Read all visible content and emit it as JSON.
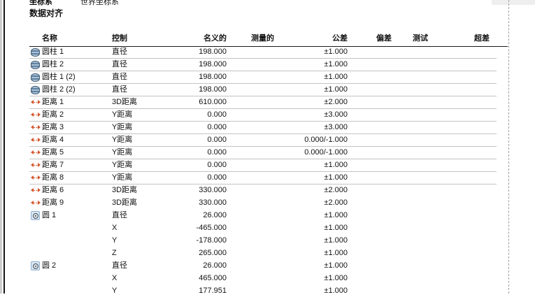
{
  "header": {
    "coord_label": "坐标系",
    "coord_value": "世界坐标系",
    "title": "数据对齐"
  },
  "table": {
    "columns": [
      "名称",
      "控制",
      "名义的",
      "测量的",
      "公差",
      "偏差",
      "测试",
      "超差"
    ],
    "rows": [
      {
        "icon": "cylinder",
        "name": "圆柱 1",
        "control": "直径",
        "nominal": "198.000",
        "measured": "",
        "tolerance": "±1.000",
        "deviation": "",
        "test": "",
        "out_tol": "",
        "separator": true
      },
      {
        "icon": "cylinder",
        "name": "圆柱 2",
        "control": "直径",
        "nominal": "198.000",
        "measured": "",
        "tolerance": "±1.000",
        "deviation": "",
        "test": "",
        "out_tol": "",
        "separator": true
      },
      {
        "icon": "cylinder",
        "name": "圆柱 1 (2)",
        "control": "直径",
        "nominal": "198.000",
        "measured": "",
        "tolerance": "±1.000",
        "deviation": "",
        "test": "",
        "out_tol": "",
        "separator": true
      },
      {
        "icon": "cylinder",
        "name": "圆柱 2 (2)",
        "control": "直径",
        "nominal": "198.000",
        "measured": "",
        "tolerance": "±1.000",
        "deviation": "",
        "test": "",
        "out_tol": "",
        "separator": true
      },
      {
        "icon": "distance",
        "name": "距离 1",
        "control": "3D距离",
        "nominal": "610.000",
        "measured": "",
        "tolerance": "±2.000",
        "deviation": "",
        "test": "",
        "out_tol": "",
        "separator": true
      },
      {
        "icon": "distance",
        "name": "距离 2",
        "control": "Y距离",
        "nominal": "0.000",
        "measured": "",
        "tolerance": "±3.000",
        "deviation": "",
        "test": "",
        "out_tol": "",
        "separator": true
      },
      {
        "icon": "distance",
        "name": "距离 3",
        "control": "Y距离",
        "nominal": "0.000",
        "measured": "",
        "tolerance": "±3.000",
        "deviation": "",
        "test": "",
        "out_tol": "",
        "separator": true
      },
      {
        "icon": "distance",
        "name": "距离 4",
        "control": "Y距离",
        "nominal": "0.000",
        "measured": "",
        "tolerance": "0.000/-1.000",
        "deviation": "",
        "test": "",
        "out_tol": "",
        "separator": true
      },
      {
        "icon": "distance",
        "name": "距离 5",
        "control": "Y距离",
        "nominal": "0.000",
        "measured": "",
        "tolerance": "0.000/-1.000",
        "deviation": "",
        "test": "",
        "out_tol": "",
        "separator": true
      },
      {
        "icon": "distance",
        "name": "距离 7",
        "control": "Y距离",
        "nominal": "0.000",
        "measured": "",
        "tolerance": "±1.000",
        "deviation": "",
        "test": "",
        "out_tol": "",
        "separator": true
      },
      {
        "icon": "distance",
        "name": "距离 8",
        "control": "Y距离",
        "nominal": "0.000",
        "measured": "",
        "tolerance": "±1.000",
        "deviation": "",
        "test": "",
        "out_tol": "",
        "separator": true
      },
      {
        "icon": "distance",
        "name": "距离 6",
        "control": "3D距离",
        "nominal": "330.000",
        "measured": "",
        "tolerance": "±2.000",
        "deviation": "",
        "test": "",
        "out_tol": "",
        "separator": false
      },
      {
        "icon": "distance",
        "name": "距离 9",
        "control": "3D距离",
        "nominal": "330.000",
        "measured": "",
        "tolerance": "±2.000",
        "deviation": "",
        "test": "",
        "out_tol": "",
        "separator": false
      },
      {
        "icon": "circle",
        "name": "圆 1",
        "control": "直径",
        "nominal": "26.000",
        "measured": "",
        "tolerance": "±1.000",
        "deviation": "",
        "test": "",
        "out_tol": "",
        "separator": false
      },
      {
        "icon": "",
        "name": "",
        "control": "X",
        "nominal": "-465.000",
        "measured": "",
        "tolerance": "±1.000",
        "deviation": "",
        "test": "",
        "out_tol": "",
        "separator": false
      },
      {
        "icon": "",
        "name": "",
        "control": "Y",
        "nominal": "-178.000",
        "measured": "",
        "tolerance": "±1.000",
        "deviation": "",
        "test": "",
        "out_tol": "",
        "separator": false
      },
      {
        "icon": "",
        "name": "",
        "control": "Z",
        "nominal": "265.000",
        "measured": "",
        "tolerance": "±1.000",
        "deviation": "",
        "test": "",
        "out_tol": "",
        "separator": false
      },
      {
        "icon": "circle",
        "name": "圆 2",
        "control": "直径",
        "nominal": "26.000",
        "measured": "",
        "tolerance": "±1.000",
        "deviation": "",
        "test": "",
        "out_tol": "",
        "separator": false
      },
      {
        "icon": "",
        "name": "",
        "control": "X",
        "nominal": "465.000",
        "measured": "",
        "tolerance": "±1.000",
        "deviation": "",
        "test": "",
        "out_tol": "",
        "separator": false
      },
      {
        "icon": "",
        "name": "",
        "control": "Y",
        "nominal": "177.951",
        "measured": "",
        "tolerance": "±1.000",
        "deviation": "",
        "test": "",
        "out_tol": "",
        "separator": false
      }
    ]
  },
  "colors": {
    "distance_icon": "#d4572b",
    "cylinder_icon_dark": "#5f82a0",
    "cylinder_icon_light": "#a9c0d6",
    "circle_icon_bg": "#d8e7f5",
    "separator": "#c3c3c3",
    "header_line": "#1a1a1a",
    "page_guide": "#9f9f9f"
  }
}
